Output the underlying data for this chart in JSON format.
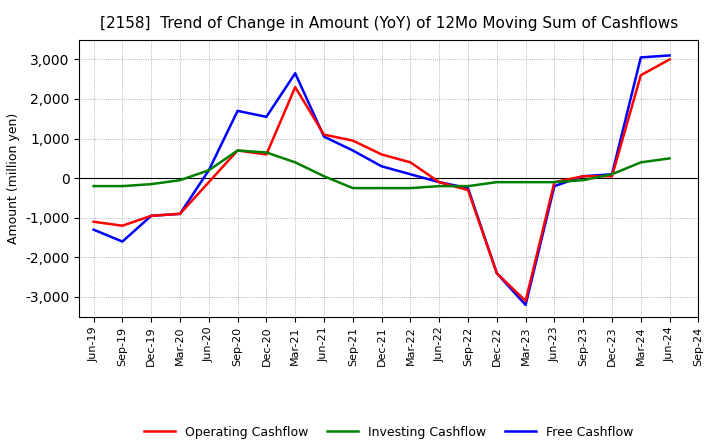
{
  "title": "[2158]  Trend of Change in Amount (YoY) of 12Mo Moving Sum of Cashflows",
  "ylabel": "Amount (million yen)",
  "ylim": [
    -3500,
    3500
  ],
  "yticks": [
    -3000,
    -2000,
    -1000,
    0,
    1000,
    2000,
    3000
  ],
  "x_labels": [
    "Jun-19",
    "Sep-19",
    "Dec-19",
    "Mar-20",
    "Jun-20",
    "Sep-20",
    "Dec-20",
    "Mar-21",
    "Jun-21",
    "Sep-21",
    "Dec-21",
    "Mar-22",
    "Jun-22",
    "Sep-22",
    "Dec-22",
    "Mar-23",
    "Jun-23",
    "Sep-23",
    "Dec-23",
    "Mar-24",
    "Jun-24",
    "Sep-24"
  ],
  "operating": [
    -1100,
    -1200,
    -950,
    -900,
    -100,
    700,
    600,
    2300,
    1100,
    950,
    600,
    400,
    -100,
    -300,
    -2400,
    -3100,
    -100,
    50,
    50,
    2600,
    3000,
    null
  ],
  "investing": [
    -200,
    -200,
    -150,
    -50,
    200,
    700,
    650,
    400,
    50,
    -250,
    -250,
    -250,
    -200,
    -200,
    -100,
    -100,
    -100,
    -50,
    100,
    400,
    500,
    null
  ],
  "free": [
    -1300,
    -1600,
    -950,
    -900,
    200,
    1700,
    1550,
    2650,
    1050,
    700,
    300,
    100,
    -100,
    -250,
    -2400,
    -3200,
    -200,
    50,
    100,
    3050,
    3100,
    null
  ],
  "op_color": "#ff0000",
  "inv_color": "#008000",
  "free_color": "#0000ff",
  "bg_color": "#ffffff",
  "grid_color": "#999999",
  "line_width": 1.8,
  "title_fontsize": 11,
  "ylabel_fontsize": 9,
  "tick_fontsize": 8,
  "legend_fontsize": 9,
  "legend_labels": [
    "Operating Cashflow",
    "Investing Cashflow",
    "Free Cashflow"
  ]
}
